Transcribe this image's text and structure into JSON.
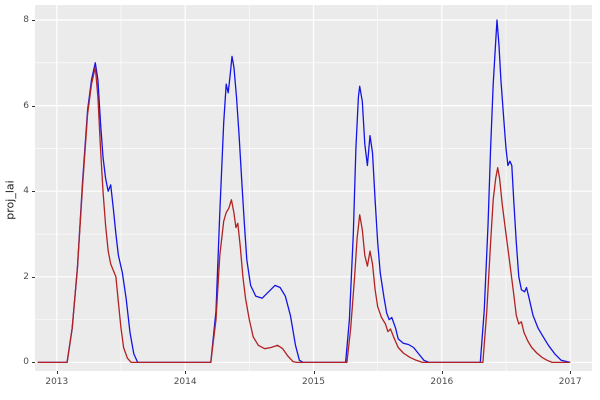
{
  "figure": {
    "panel_bg": "#EBEBEB",
    "grid_color": "#FFFFFF",
    "tick_label_color": "#4D4D4D",
    "axis_label_color": "#1A1A1A"
  },
  "chart_data": {
    "type": "line",
    "title": "",
    "xlabel": "",
    "ylabel": "proj_lai",
    "xlim": [
      2012.83,
      2017.17
    ],
    "ylim": [
      -0.2,
      8.35
    ],
    "grid": true,
    "legend": "none",
    "x_ticks": [
      2013,
      2014,
      2015,
      2016,
      2017
    ],
    "x_tick_labels": [
      "2013",
      "2014",
      "2015",
      "2016",
      "2017"
    ],
    "x_minor_ticks": [
      2013.5,
      2014.5,
      2015.5,
      2016.5
    ],
    "y_ticks": [
      0,
      2,
      4,
      6,
      8
    ],
    "y_tick_labels": [
      "0",
      "2",
      "4",
      "6",
      "8"
    ],
    "y_minor_ticks": [
      1,
      3,
      5,
      7
    ],
    "series": [
      {
        "name": "blue-series",
        "color": "#1414E6",
        "points": [
          [
            2012.85,
            0
          ],
          [
            2013.08,
            0
          ],
          [
            2013.12,
            0.8
          ],
          [
            2013.16,
            2.2
          ],
          [
            2013.2,
            4.2
          ],
          [
            2013.24,
            5.9
          ],
          [
            2013.27,
            6.6
          ],
          [
            2013.3,
            7.0
          ],
          [
            2013.32,
            6.6
          ],
          [
            2013.34,
            5.6
          ],
          [
            2013.36,
            4.8
          ],
          [
            2013.38,
            4.3
          ],
          [
            2013.4,
            4.0
          ],
          [
            2013.42,
            4.15
          ],
          [
            2013.44,
            3.6
          ],
          [
            2013.46,
            3.0
          ],
          [
            2013.48,
            2.5
          ],
          [
            2013.51,
            2.1
          ],
          [
            2013.54,
            1.5
          ],
          [
            2013.57,
            0.7
          ],
          [
            2013.6,
            0.2
          ],
          [
            2013.63,
            0
          ],
          [
            2014.2,
            0
          ],
          [
            2014.24,
            1.2
          ],
          [
            2014.27,
            3.5
          ],
          [
            2014.3,
            5.6
          ],
          [
            2014.32,
            6.5
          ],
          [
            2014.335,
            6.3
          ],
          [
            2014.35,
            6.7
          ],
          [
            2014.365,
            7.15
          ],
          [
            2014.38,
            6.9
          ],
          [
            2014.4,
            6.2
          ],
          [
            2014.42,
            5.3
          ],
          [
            2014.44,
            4.3
          ],
          [
            2014.46,
            3.3
          ],
          [
            2014.48,
            2.4
          ],
          [
            2014.51,
            1.8
          ],
          [
            2014.55,
            1.55
          ],
          [
            2014.6,
            1.5
          ],
          [
            2014.65,
            1.65
          ],
          [
            2014.7,
            1.8
          ],
          [
            2014.74,
            1.75
          ],
          [
            2014.78,
            1.55
          ],
          [
            2014.82,
            1.1
          ],
          [
            2014.86,
            0.4
          ],
          [
            2014.89,
            0.05
          ],
          [
            2014.92,
            0
          ],
          [
            2015.25,
            0
          ],
          [
            2015.28,
            1.0
          ],
          [
            2015.31,
            3.0
          ],
          [
            2015.33,
            5.0
          ],
          [
            2015.35,
            6.2
          ],
          [
            2015.36,
            6.45
          ],
          [
            2015.38,
            6.1
          ],
          [
            2015.4,
            5.1
          ],
          [
            2015.42,
            4.6
          ],
          [
            2015.44,
            5.3
          ],
          [
            2015.46,
            4.9
          ],
          [
            2015.48,
            3.8
          ],
          [
            2015.5,
            2.8
          ],
          [
            2015.52,
            2.1
          ],
          [
            2015.55,
            1.5
          ],
          [
            2015.57,
            1.15
          ],
          [
            2015.59,
            1.0
          ],
          [
            2015.61,
            1.05
          ],
          [
            2015.64,
            0.8
          ],
          [
            2015.66,
            0.55
          ],
          [
            2015.7,
            0.45
          ],
          [
            2015.74,
            0.42
          ],
          [
            2015.78,
            0.35
          ],
          [
            2015.82,
            0.2
          ],
          [
            2015.86,
            0.05
          ],
          [
            2015.9,
            0
          ],
          [
            2016.3,
            0
          ],
          [
            2016.33,
            1.2
          ],
          [
            2016.36,
            3.2
          ],
          [
            2016.38,
            5.0
          ],
          [
            2016.4,
            6.5
          ],
          [
            2016.42,
            7.5
          ],
          [
            2016.43,
            8.0
          ],
          [
            2016.445,
            7.4
          ],
          [
            2016.46,
            6.6
          ],
          [
            2016.48,
            5.8
          ],
          [
            2016.5,
            5.0
          ],
          [
            2016.515,
            4.6
          ],
          [
            2016.53,
            4.7
          ],
          [
            2016.545,
            4.6
          ],
          [
            2016.56,
            3.8
          ],
          [
            2016.58,
            2.8
          ],
          [
            2016.6,
            2.0
          ],
          [
            2016.62,
            1.7
          ],
          [
            2016.645,
            1.65
          ],
          [
            2016.66,
            1.75
          ],
          [
            2016.68,
            1.5
          ],
          [
            2016.71,
            1.1
          ],
          [
            2016.75,
            0.8
          ],
          [
            2016.79,
            0.6
          ],
          [
            2016.83,
            0.4
          ],
          [
            2016.88,
            0.2
          ],
          [
            2016.93,
            0.05
          ],
          [
            2017.0,
            0
          ]
        ]
      },
      {
        "name": "red-series",
        "color": "#B22222",
        "points": [
          [
            2012.85,
            0
          ],
          [
            2013.08,
            0
          ],
          [
            2013.12,
            0.8
          ],
          [
            2013.16,
            2.2
          ],
          [
            2013.2,
            4.1
          ],
          [
            2013.24,
            5.8
          ],
          [
            2013.27,
            6.5
          ],
          [
            2013.3,
            6.9
          ],
          [
            2013.32,
            6.2
          ],
          [
            2013.34,
            5.0
          ],
          [
            2013.36,
            4.0
          ],
          [
            2013.38,
            3.2
          ],
          [
            2013.4,
            2.6
          ],
          [
            2013.42,
            2.3
          ],
          [
            2013.44,
            2.15
          ],
          [
            2013.46,
            2.0
          ],
          [
            2013.48,
            1.4
          ],
          [
            2013.5,
            0.8
          ],
          [
            2013.52,
            0.35
          ],
          [
            2013.55,
            0.1
          ],
          [
            2013.58,
            0
          ],
          [
            2014.2,
            0
          ],
          [
            2014.24,
            1.0
          ],
          [
            2014.27,
            2.5
          ],
          [
            2014.3,
            3.3
          ],
          [
            2014.32,
            3.5
          ],
          [
            2014.34,
            3.6
          ],
          [
            2014.36,
            3.8
          ],
          [
            2014.38,
            3.5
          ],
          [
            2014.395,
            3.15
          ],
          [
            2014.41,
            3.25
          ],
          [
            2014.43,
            2.7
          ],
          [
            2014.45,
            2.0
          ],
          [
            2014.47,
            1.5
          ],
          [
            2014.5,
            1.0
          ],
          [
            2014.53,
            0.6
          ],
          [
            2014.57,
            0.4
          ],
          [
            2014.62,
            0.32
          ],
          [
            2014.67,
            0.35
          ],
          [
            2014.72,
            0.4
          ],
          [
            2014.76,
            0.32
          ],
          [
            2014.8,
            0.15
          ],
          [
            2014.84,
            0.02
          ],
          [
            2014.87,
            0
          ],
          [
            2015.26,
            0
          ],
          [
            2015.29,
            0.8
          ],
          [
            2015.32,
            2.0
          ],
          [
            2015.34,
            2.9
          ],
          [
            2015.36,
            3.45
          ],
          [
            2015.38,
            3.1
          ],
          [
            2015.4,
            2.5
          ],
          [
            2015.42,
            2.25
          ],
          [
            2015.44,
            2.6
          ],
          [
            2015.46,
            2.3
          ],
          [
            2015.48,
            1.7
          ],
          [
            2015.5,
            1.3
          ],
          [
            2015.53,
            1.05
          ],
          [
            2015.56,
            0.9
          ],
          [
            2015.58,
            0.72
          ],
          [
            2015.6,
            0.78
          ],
          [
            2015.63,
            0.55
          ],
          [
            2015.66,
            0.35
          ],
          [
            2015.7,
            0.22
          ],
          [
            2015.75,
            0.12
          ],
          [
            2015.8,
            0.05
          ],
          [
            2015.85,
            0
          ],
          [
            2016.32,
            0
          ],
          [
            2016.35,
            1.2
          ],
          [
            2016.38,
            2.8
          ],
          [
            2016.4,
            3.8
          ],
          [
            2016.42,
            4.3
          ],
          [
            2016.435,
            4.55
          ],
          [
            2016.45,
            4.3
          ],
          [
            2016.47,
            3.7
          ],
          [
            2016.5,
            3.0
          ],
          [
            2016.53,
            2.3
          ],
          [
            2016.56,
            1.6
          ],
          [
            2016.58,
            1.1
          ],
          [
            2016.6,
            0.9
          ],
          [
            2016.62,
            0.95
          ],
          [
            2016.64,
            0.7
          ],
          [
            2016.67,
            0.5
          ],
          [
            2016.7,
            0.35
          ],
          [
            2016.74,
            0.22
          ],
          [
            2016.78,
            0.12
          ],
          [
            2016.82,
            0.05
          ],
          [
            2016.86,
            0
          ],
          [
            2017.0,
            0
          ]
        ]
      }
    ]
  }
}
